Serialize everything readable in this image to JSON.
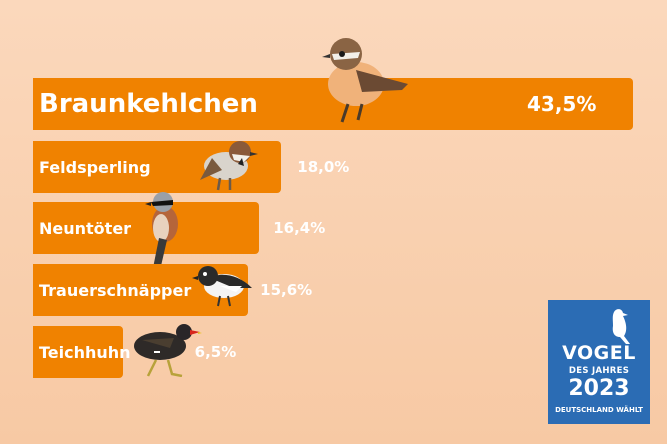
{
  "chart_data": {
    "type": "bar",
    "orientation": "horizontal",
    "categories": [
      "Braunkehlchen",
      "Feldsperling",
      "Neuntöter",
      "Trauerschnäpper",
      "Teichhuhn"
    ],
    "values": [
      43.5,
      18.0,
      16.4,
      15.6,
      6.5
    ],
    "value_labels": [
      "43,5%",
      "18,0%",
      "16,4%",
      "15,6%",
      "6,5%"
    ],
    "unit": "%",
    "bar_color": "#f08200"
  },
  "logo": {
    "line1": "VOGEL",
    "line2": "DES JAHRES",
    "line3": "2023",
    "line4": "DEUTSCHLAND WÄHLT",
    "color": "#2b6cb4"
  }
}
